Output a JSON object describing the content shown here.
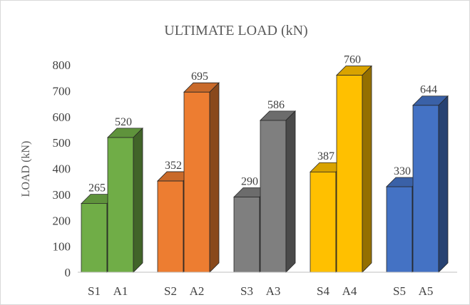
{
  "chart_data": {
    "type": "bar",
    "title": "ULTIMATE LOAD (kN)",
    "xlabel": "",
    "ylabel": "LOAD (kN)",
    "ylim": [
      0,
      800
    ],
    "yticks": [
      0,
      100,
      200,
      300,
      400,
      500,
      600,
      700,
      800
    ],
    "grid": false,
    "legend": "none",
    "style": "3d-column",
    "groups": [
      {
        "color": "#70ad47",
        "bars": [
          {
            "label": "S1",
            "value": 265
          },
          {
            "label": "A1",
            "value": 520
          }
        ]
      },
      {
        "color": "#ed7d31",
        "bars": [
          {
            "label": "S2",
            "value": 352
          },
          {
            "label": "A2",
            "value": 695
          }
        ]
      },
      {
        "color": "#7f7f7f",
        "bars": [
          {
            "label": "S3",
            "value": 290
          },
          {
            "label": "A3",
            "value": 586
          }
        ]
      },
      {
        "color": "#ffc000",
        "bars": [
          {
            "label": "S4",
            "value": 387
          },
          {
            "label": "A4",
            "value": 760
          }
        ]
      },
      {
        "color": "#4472c4",
        "bars": [
          {
            "label": "S5",
            "value": 330
          },
          {
            "label": "A5",
            "value": 644
          }
        ]
      }
    ]
  }
}
